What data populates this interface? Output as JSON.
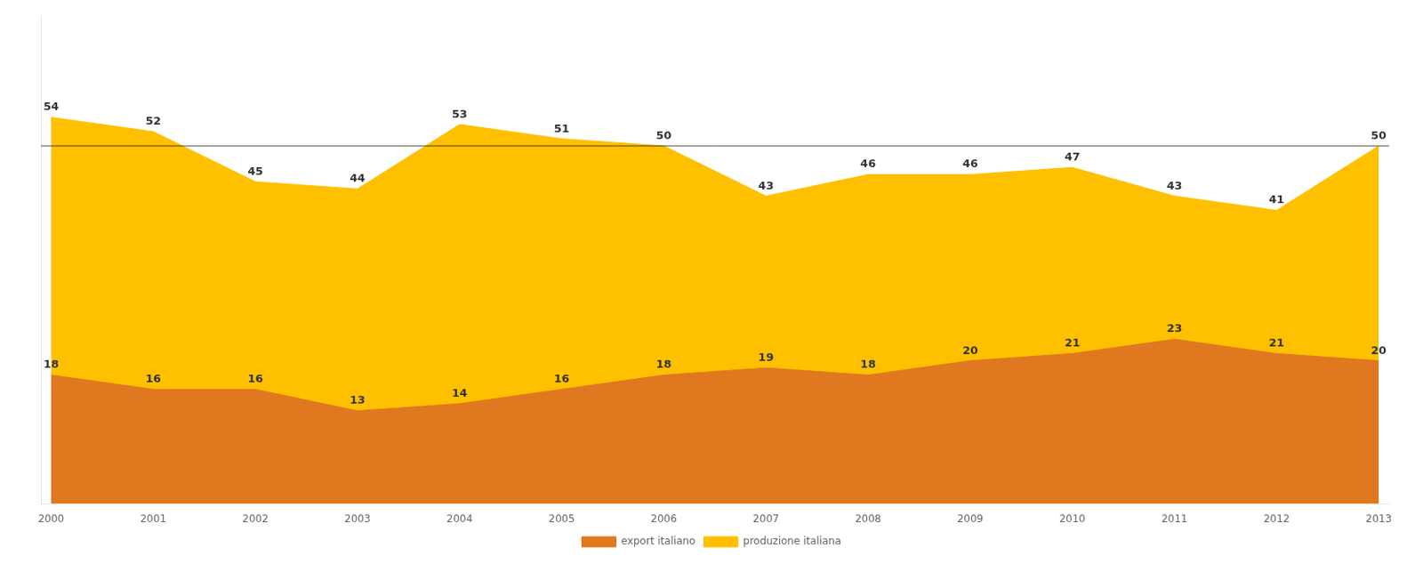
{
  "chart_data": {
    "type": "area",
    "x": [
      2000,
      2001,
      2002,
      2003,
      2004,
      2005,
      2006,
      2007,
      2008,
      2009,
      2010,
      2011,
      2012,
      2013
    ],
    "series": [
      {
        "name": "produzione italiana",
        "color": "#FFC000",
        "values": [
          54,
          52,
          45,
          44,
          53,
          51,
          50,
          43,
          46,
          46,
          47,
          43,
          41,
          50
        ]
      },
      {
        "name": "export italiano",
        "color": "#E07820",
        "values": [
          18,
          16,
          16,
          13,
          14,
          16,
          18,
          19,
          18,
          20,
          21,
          23,
          21,
          20
        ]
      }
    ],
    "xlim": [
      1999.9,
      2013.1
    ],
    "xticks": [
      2000,
      2001,
      2002,
      2003,
      2004,
      2005,
      2006,
      2007,
      2008,
      2009,
      2010,
      2011,
      2012,
      2013
    ],
    "ylim": [
      0,
      68
    ],
    "ref_lines": [
      50
    ],
    "grid": false,
    "legend": "bottom",
    "data_labels": true,
    "tick_labels": "x"
  }
}
